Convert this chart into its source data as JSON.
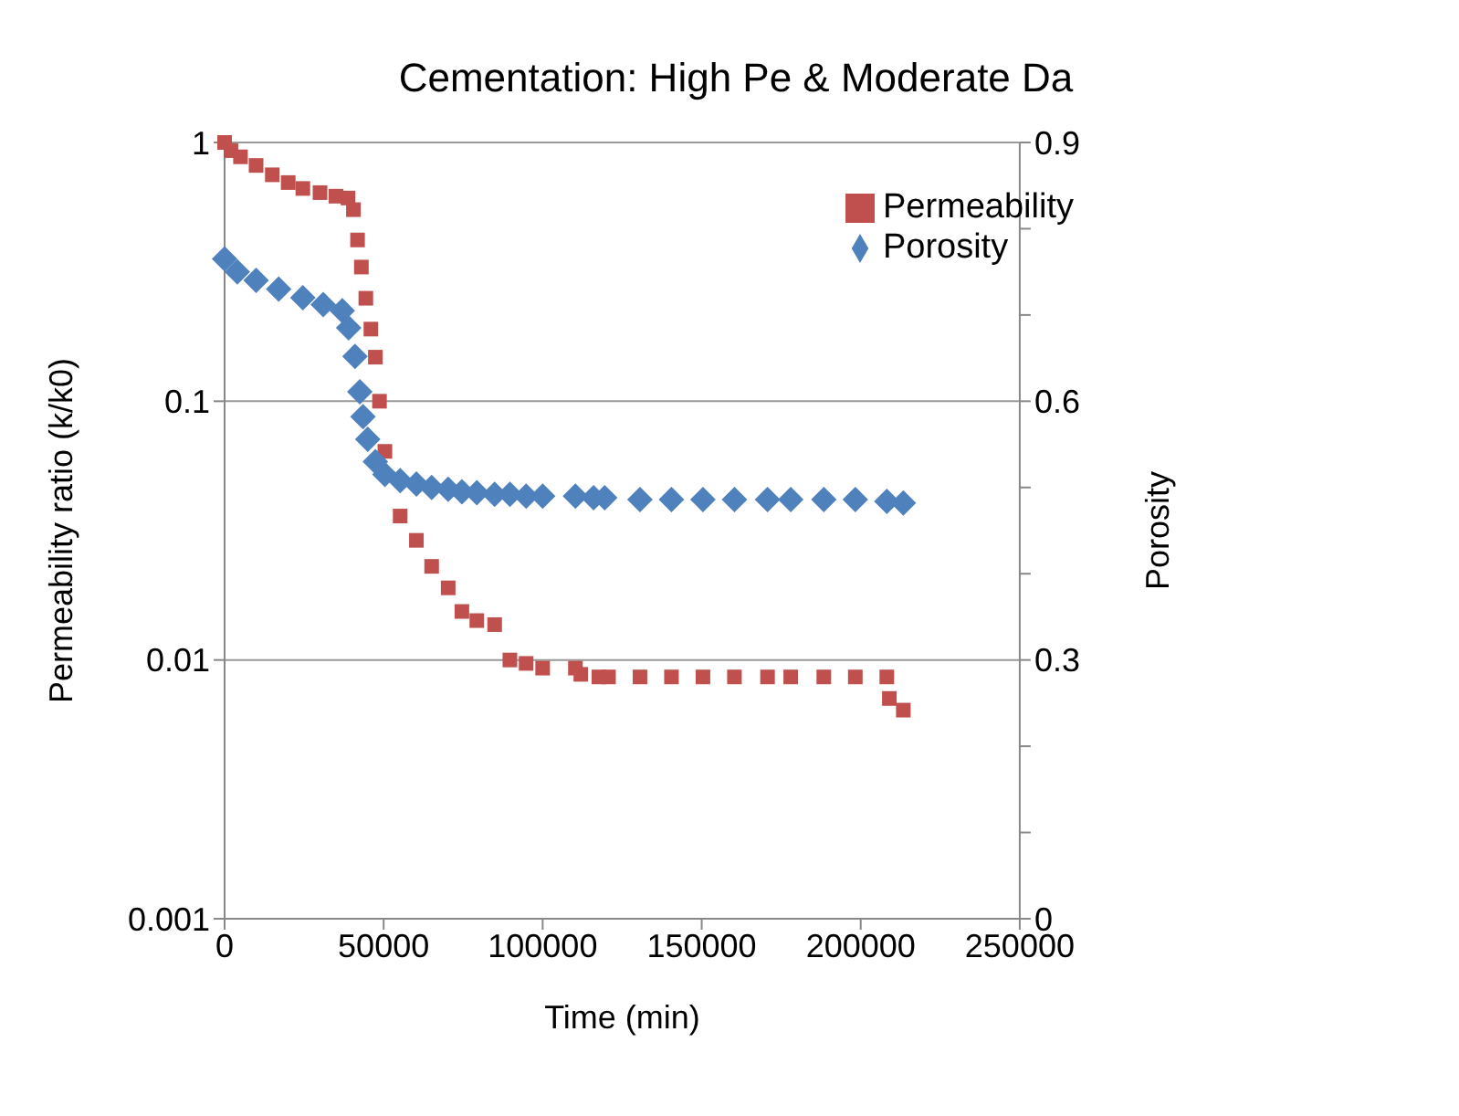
{
  "chart_data": {
    "type": "scatter",
    "title": "Cementation: High Pe & Moderate Da",
    "xlabel": "Time (min)",
    "ylabel": "Permeability ratio (k/k0)",
    "y2label": "Porosity",
    "xlim": [
      0,
      250000
    ],
    "xticks": [
      0,
      50000,
      100000,
      150000,
      200000,
      250000
    ],
    "log": "y",
    "ylim": [
      0.001,
      1
    ],
    "yticks": [
      0.001,
      0.01,
      0.1,
      1
    ],
    "y2lim": [
      0,
      0.9
    ],
    "y2ticks": [
      0,
      {
        "value": 0.1,
        "label": null
      },
      {
        "value": 0.2,
        "label": null
      },
      0.3,
      {
        "value": 0.4,
        "label": null
      },
      {
        "value": 0.5,
        "label": null
      },
      0.6,
      {
        "value": 0.7,
        "label": null
      },
      {
        "value": 0.8,
        "label": null
      },
      0.9
    ],
    "grid": "y",
    "legend": "top right",
    "series": [
      {
        "name": "Permeability",
        "color": "#c0504d",
        "marker": "square",
        "x": [
          0,
          2000,
          5000,
          9900,
          15000,
          20000,
          24600,
          30000,
          35000,
          38800,
          40500,
          41800,
          43000,
          44400,
          46000,
          47400,
          48700,
          50400,
          55200,
          60300,
          65100,
          70300,
          74600,
          79300,
          84900,
          89700,
          94800,
          100000,
          110300,
          112000,
          117700,
          120700,
          130600,
          140500,
          150400,
          160300,
          170700,
          178000,
          188400,
          198300,
          208200,
          209000,
          213400
        ],
        "values": [
          1.0,
          0.93,
          0.88,
          0.815,
          0.75,
          0.7,
          0.664,
          0.64,
          0.62,
          0.61,
          0.55,
          0.42,
          0.33,
          0.25,
          0.19,
          0.148,
          0.1,
          0.064,
          0.036,
          0.029,
          0.023,
          0.019,
          0.0154,
          0.0142,
          0.0137,
          0.01,
          0.0097,
          0.0093,
          0.0093,
          0.0088,
          0.0086,
          0.0086,
          0.0086,
          0.0086,
          0.0086,
          0.0086,
          0.0086,
          0.0086,
          0.0086,
          0.0086,
          0.0086,
          0.0071,
          0.0064
        ]
      },
      {
        "name": "Porosity",
        "color": "#4f81bd",
        "marker": "diamond",
        "axis": "y2",
        "x": [
          0,
          4000,
          9900,
          17000,
          24600,
          31000,
          37000,
          39000,
          41000,
          42500,
          43500,
          45000,
          47400,
          50400,
          55200,
          60300,
          65100,
          70300,
          74600,
          79300,
          84900,
          89700,
          94800,
          100000,
          110300,
          116000,
          119500,
          130600,
          140500,
          150400,
          160300,
          170700,
          178000,
          188400,
          198300,
          208200,
          213400
        ],
        "values": [
          0.765,
          0.75,
          0.74,
          0.73,
          0.72,
          0.712,
          0.705,
          0.685,
          0.652,
          0.611,
          0.582,
          0.556,
          0.53,
          0.515,
          0.508,
          0.504,
          0.5,
          0.498,
          0.495,
          0.494,
          0.492,
          0.492,
          0.49,
          0.49,
          0.49,
          0.488,
          0.488,
          0.486,
          0.486,
          0.486,
          0.486,
          0.486,
          0.486,
          0.486,
          0.486,
          0.484,
          0.482
        ]
      }
    ]
  }
}
